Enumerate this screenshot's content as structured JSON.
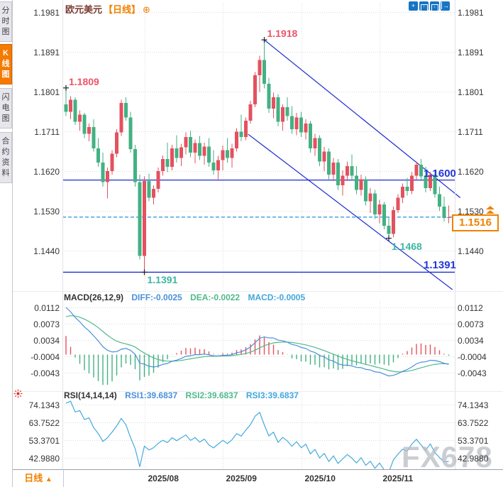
{
  "header": {
    "symbol": "欧元美元",
    "period_tag": "【日线】",
    "plus_icon": "⊕"
  },
  "sidebar": {
    "tabs": [
      {
        "label": "分时图",
        "active": false
      },
      {
        "label": "K线图",
        "active": true
      },
      {
        "label": "闪电图",
        "active": false
      },
      {
        "label": "合约资料",
        "active": false
      }
    ]
  },
  "toolbar_icons": [
    "move-crosshair",
    "scale-vertical",
    "scale-horizontal",
    "exit-fullscreen"
  ],
  "colors": {
    "up": "#e4515f",
    "down": "#43b183",
    "trend_blue": "#1c2bd0",
    "dashed_blue": "#3a99d9",
    "level_label_blue": "#2336d8",
    "swing_teal": "#3eb6a2",
    "swing_red": "#ee5468",
    "orange": "#f08200",
    "diff_blue": "#4a90d9",
    "dea_green": "#4fb98c",
    "macd_cyan": "#41a7dc",
    "rsi_line": "#45aadc",
    "grid": "#dcdce2",
    "axis_text": "#333333"
  },
  "chart_data": {
    "type": "candlestick",
    "symbol": "欧元美元",
    "timeframe": "日线",
    "y_axis_labels_price": [
      "1.1981",
      "1.1891",
      "1.1801",
      "1.1711",
      "1.1620",
      "1.1530",
      "1.1440"
    ],
    "x_axis_dates": [
      {
        "label": "2025/08",
        "candle_index": 17
      },
      {
        "label": "2025/09",
        "candle_index": 34
      },
      {
        "label": "2025/10",
        "candle_index": 51
      },
      {
        "label": "2025/11",
        "candle_index": 68
      }
    ],
    "current_price": "1.1516",
    "ohlc": [
      [
        1.1772,
        1.1809,
        1.1745,
        1.1755
      ],
      [
        1.1755,
        1.179,
        1.1738,
        1.1782
      ],
      [
        1.1782,
        1.1788,
        1.1725,
        1.1732
      ],
      [
        1.1732,
        1.1758,
        1.1712,
        1.1748
      ],
      [
        1.1748,
        1.1752,
        1.1695,
        1.1705
      ],
      [
        1.1705,
        1.1728,
        1.1688,
        1.172
      ],
      [
        1.172,
        1.1738,
        1.1665,
        1.1672
      ],
      [
        1.1672,
        1.1695,
        1.163,
        1.164
      ],
      [
        1.164,
        1.1662,
        1.1585,
        1.1595
      ],
      [
        1.1595,
        1.1628,
        1.1558,
        1.162
      ],
      [
        1.162,
        1.1668,
        1.1612,
        1.166
      ],
      [
        1.166,
        1.1715,
        1.1652,
        1.1708
      ],
      [
        1.1708,
        1.1782,
        1.17,
        1.1775
      ],
      [
        1.1775,
        1.1788,
        1.1735,
        1.1742
      ],
      [
        1.1742,
        1.1755,
        1.1662,
        1.167
      ],
      [
        1.167,
        1.168,
        1.1585,
        1.1595
      ],
      [
        1.1595,
        1.1612,
        1.142,
        1.1428
      ],
      [
        1.1428,
        1.1608,
        1.1391,
        1.1598
      ],
      [
        1.1598,
        1.1615,
        1.1552,
        1.156
      ],
      [
        1.156,
        1.1588,
        1.1545,
        1.158
      ],
      [
        1.158,
        1.1628,
        1.1572,
        1.162
      ],
      [
        1.162,
        1.1656,
        1.161,
        1.1648
      ],
      [
        1.1648,
        1.1685,
        1.1618,
        1.163
      ],
      [
        1.163,
        1.168,
        1.1622,
        1.1672
      ],
      [
        1.1672,
        1.1702,
        1.164,
        1.165
      ],
      [
        1.165,
        1.1682,
        1.1632,
        1.1674
      ],
      [
        1.1674,
        1.1708,
        1.1658,
        1.1698
      ],
      [
        1.1698,
        1.1712,
        1.1652,
        1.1662
      ],
      [
        1.1662,
        1.1692,
        1.1638,
        1.1684
      ],
      [
        1.1684,
        1.17,
        1.1645,
        1.1655
      ],
      [
        1.1655,
        1.1685,
        1.1635,
        1.1676
      ],
      [
        1.1676,
        1.1695,
        1.163,
        1.164
      ],
      [
        1.164,
        1.1668,
        1.1612,
        1.1622
      ],
      [
        1.1622,
        1.1655,
        1.1602,
        1.1645
      ],
      [
        1.1645,
        1.1678,
        1.1622,
        1.1668
      ],
      [
        1.1668,
        1.1695,
        1.164,
        1.165
      ],
      [
        1.165,
        1.1682,
        1.1628,
        1.1672
      ],
      [
        1.1672,
        1.1718,
        1.1665,
        1.171
      ],
      [
        1.171,
        1.1748,
        1.1688,
        1.1698
      ],
      [
        1.1698,
        1.1742,
        1.169,
        1.1735
      ],
      [
        1.1735,
        1.178,
        1.1728,
        1.1772
      ],
      [
        1.1772,
        1.1845,
        1.1765,
        1.1838
      ],
      [
        1.1838,
        1.1882,
        1.18,
        1.1872
      ],
      [
        1.1872,
        1.1918,
        1.1808,
        1.1818
      ],
      [
        1.1818,
        1.1832,
        1.1752,
        1.1762
      ],
      [
        1.1762,
        1.1798,
        1.174,
        1.1788
      ],
      [
        1.1788,
        1.1795,
        1.1722,
        1.1732
      ],
      [
        1.1732,
        1.1772,
        1.1712,
        1.1765
      ],
      [
        1.1765,
        1.1788,
        1.1735,
        1.1745
      ],
      [
        1.1745,
        1.1768,
        1.1705,
        1.1715
      ],
      [
        1.1715,
        1.1752,
        1.1702,
        1.1742
      ],
      [
        1.1742,
        1.1755,
        1.1698,
        1.1708
      ],
      [
        1.1708,
        1.1738,
        1.1692,
        1.1728
      ],
      [
        1.1728,
        1.1735,
        1.1662,
        1.1672
      ],
      [
        1.1672,
        1.1705,
        1.1655,
        1.1695
      ],
      [
        1.1695,
        1.1702,
        1.1632,
        1.1642
      ],
      [
        1.1642,
        1.1675,
        1.162,
        1.1665
      ],
      [
        1.1665,
        1.1672,
        1.1602,
        1.1612
      ],
      [
        1.1612,
        1.165,
        1.1598,
        1.164
      ],
      [
        1.164,
        1.1648,
        1.1578,
        1.1588
      ],
      [
        1.1588,
        1.1622,
        1.1565,
        1.161
      ],
      [
        1.161,
        1.1642,
        1.1598,
        1.1632
      ],
      [
        1.1632,
        1.1658,
        1.16,
        1.161
      ],
      [
        1.161,
        1.1632,
        1.1568,
        1.1578
      ],
      [
        1.1578,
        1.1612,
        1.1565,
        1.1602
      ],
      [
        1.1602,
        1.1608,
        1.1542,
        1.1552
      ],
      [
        1.1552,
        1.1582,
        1.1525,
        1.157
      ],
      [
        1.157,
        1.1578,
        1.1512,
        1.1522
      ],
      [
        1.1522,
        1.1555,
        1.1502,
        1.1545
      ],
      [
        1.1545,
        1.155,
        1.1488,
        1.1496
      ],
      [
        1.1496,
        1.1515,
        1.1468,
        1.1478
      ],
      [
        1.1478,
        1.154,
        1.147,
        1.1532
      ],
      [
        1.1532,
        1.1568,
        1.1525,
        1.156
      ],
      [
        1.156,
        1.1592,
        1.1548,
        1.1585
      ],
      [
        1.1585,
        1.1605,
        1.1565,
        1.1575
      ],
      [
        1.1575,
        1.1618,
        1.1568,
        1.161
      ],
      [
        1.161,
        1.1642,
        1.16,
        1.1635
      ],
      [
        1.1635,
        1.1648,
        1.1598,
        1.1608
      ],
      [
        1.1608,
        1.163,
        1.1572,
        1.1582
      ],
      [
        1.1582,
        1.1618,
        1.1575,
        1.1612
      ],
      [
        1.1612,
        1.1622,
        1.156,
        1.1568
      ],
      [
        1.1568,
        1.1585,
        1.153,
        1.154
      ],
      [
        1.154,
        1.1562,
        1.1506,
        1.1514
      ],
      [
        1.1514,
        1.1542,
        1.1502,
        1.1516
      ]
    ],
    "support_resistance_lines": [
      {
        "price": 1.16,
        "label": "1.1600"
      },
      {
        "price": 1.1391,
        "label": "1.1391"
      }
    ],
    "swing_annotations": [
      {
        "text": "1.1809",
        "candle_index": 0,
        "price": 1.1809,
        "placement": "above",
        "color": "#ee5468"
      },
      {
        "text": "1.1918",
        "candle_index": 43,
        "price": 1.1918,
        "placement": "above",
        "color": "#ee5468"
      },
      {
        "text": "1.1391",
        "candle_index": 17,
        "price": 1.1391,
        "placement": "below",
        "color": "#3eb6a2"
      },
      {
        "text": "1.1468",
        "candle_index": 70,
        "price": 1.1468,
        "placement": "below",
        "color": "#3eb6a2"
      }
    ],
    "trendlines": [
      {
        "from_index": 43,
        "from_price": 1.1918,
        "to_index": 85.5,
        "to_price": 1.156
      },
      {
        "from_index": 39.5,
        "from_price": 1.1704,
        "to_index": 85.5,
        "to_price": 1.1338
      }
    ],
    "macd": {
      "title": "MACD(26,12,9)",
      "diff_label": "DIFF:-0.0025",
      "dea_label": "DEA:-0.0022",
      "macd_label": "MACD:-0.0005",
      "y_axis_labels": [
        "0.0112",
        "0.0073",
        "0.0034",
        "-0.0004",
        "-0.0043"
      ]
    },
    "rsi": {
      "title": "RSI(14,14,14)",
      "rsi1_label": "RSI1:39.6837",
      "rsi2_label": "RSI2:39.6837",
      "rsi3_label": "RSI3:39.6837",
      "y_axis_labels": [
        "74.1343",
        "63.7522",
        "53.3701",
        "42.9880"
      ]
    }
  },
  "bottom_bar": {
    "period_label": "日线",
    "up_arrow": "▲"
  },
  "watermark": "FX678"
}
